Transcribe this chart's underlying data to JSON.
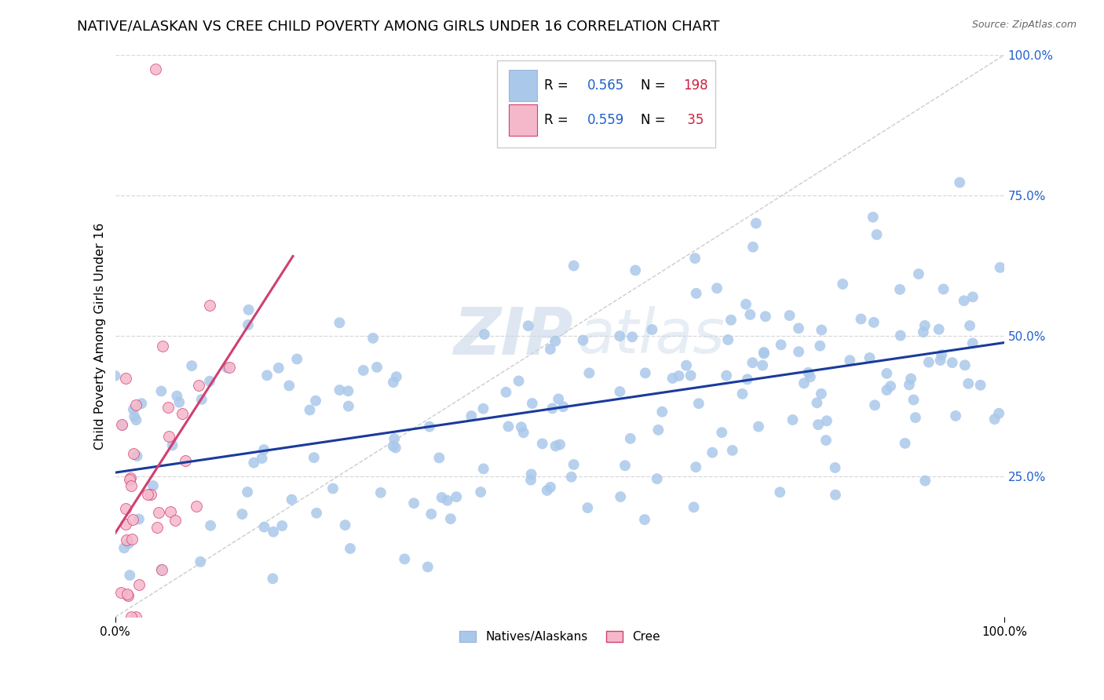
{
  "title": "NATIVE/ALASKAN VS CREE CHILD POVERTY AMONG GIRLS UNDER 16 CORRELATION CHART",
  "source": "Source: ZipAtlas.com",
  "ylabel": "Child Poverty Among Girls Under 16",
  "ytick_labels": [
    "25.0%",
    "50.0%",
    "75.0%",
    "100.0%"
  ],
  "ytick_values": [
    0.25,
    0.5,
    0.75,
    1.0
  ],
  "xtick_labels": [
    "0.0%",
    "100.0%"
  ],
  "xtick_values": [
    0.0,
    1.0
  ],
  "series1_label": "Natives/Alaskans",
  "series1_R": 0.565,
  "series1_N": 198,
  "series1_scatter_color": "#aac8ea",
  "series1_line_color": "#1a3a9c",
  "series2_label": "Cree",
  "series2_R": 0.559,
  "series2_N": 35,
  "series2_scatter_color": "#f5b8ca",
  "series2_line_color": "#d04070",
  "legend_R_color": "#2060cc",
  "legend_N_color": "#cc2040",
  "grid_color": "#d8d8d8",
  "diag_color": "#cccccc",
  "background": "#ffffff",
  "title_fontsize": 13,
  "source_fontsize": 9,
  "xlim": [
    0.0,
    1.0
  ],
  "ylim": [
    0.0,
    1.0
  ]
}
